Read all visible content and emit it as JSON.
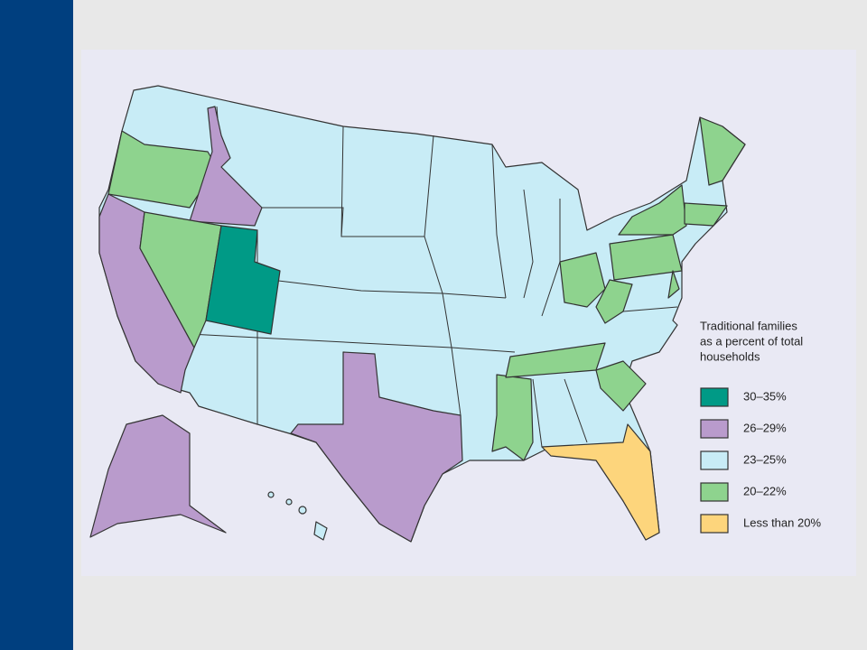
{
  "legend": {
    "title_lines": [
      "Traditional families",
      "as a percent of total",
      "households"
    ],
    "items": [
      {
        "label": "30–35%",
        "color": "#009a86"
      },
      {
        "label": "26–29%",
        "color": "#b99bcc"
      },
      {
        "label": "23–25%",
        "color": "#c8ecf6"
      },
      {
        "label": "20–22%",
        "color": "#8ed38e"
      },
      {
        "label": "Less than 20%",
        "color": "#fdd57c"
      }
    ]
  }
}
